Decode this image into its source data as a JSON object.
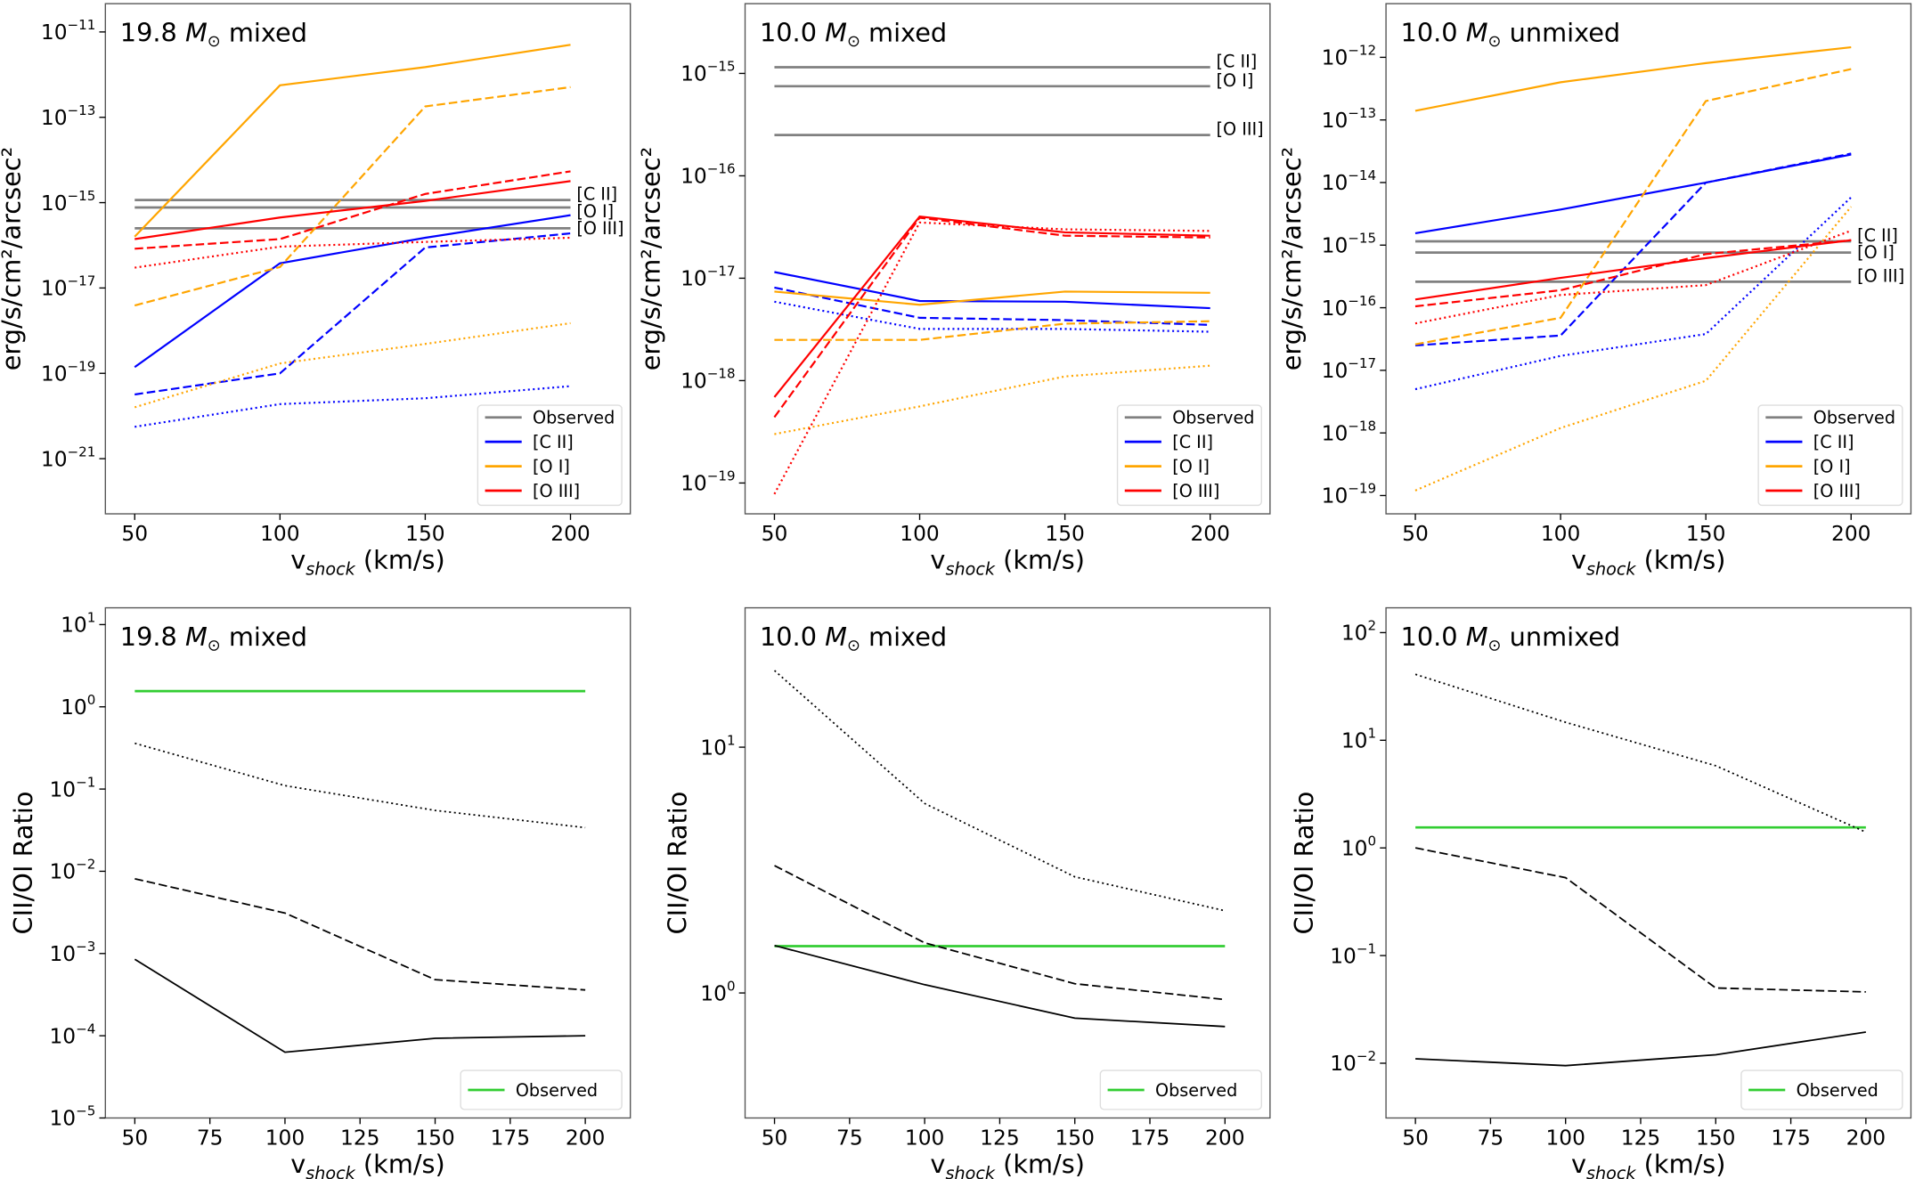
{
  "colors": {
    "observed": "#808080",
    "[C II]": "#0000ff",
    "[O I]": "#ffa500",
    "[O III]": "#ff0000",
    "ratio": "#000000",
    "observed_ratio": "#32cd32"
  },
  "chart_data": [
    {
      "type": "line",
      "panel": "top-left",
      "title_parts": [
        "19.8 ",
        "M",
        "⊙",
        " mixed"
      ],
      "xlabel_parts": [
        "v",
        "shock",
        " (km/s)"
      ],
      "ylabel": "erg/s/cm²/arcsec²",
      "yscale": "log",
      "ylim": [
        5.1e-23,
        4.6e-11
      ],
      "xlim": [
        39.9,
        220.6
      ],
      "x": [
        50,
        100,
        150,
        200
      ],
      "xticks": [
        "50",
        "100",
        "150",
        "200"
      ],
      "yticks": [
        {
          "value": 1e-11,
          "base": "10",
          "exp": "−11"
        },
        {
          "value": 1e-13,
          "base": "10",
          "exp": "−13"
        },
        {
          "value": 1e-15,
          "base": "10",
          "exp": "−15"
        },
        {
          "value": 1e-17,
          "base": "10",
          "exp": "−17"
        },
        {
          "value": 1e-19,
          "base": "10",
          "exp": "−19"
        },
        {
          "value": 1e-21,
          "base": "10",
          "exp": "−21"
        }
      ],
      "observed": [
        {
          "label": "[C II]",
          "value": 1.15e-15
        },
        {
          "label": "[O I]",
          "value": 7.7e-16
        },
        {
          "label": "[O III]",
          "value": 2.5e-16
        }
      ],
      "series": [
        {
          "line": "[C II]",
          "style": "solid",
          "values": [
            1.4e-19,
            3.8e-17,
            1.5e-16,
            5.1e-16
          ]
        },
        {
          "line": "[C II]",
          "style": "dashed",
          "values": [
            3.2e-20,
            1e-19,
            8.9e-17,
            1.9e-16
          ]
        },
        {
          "line": "[C II]",
          "style": "dotted",
          "values": [
            5.6e-21,
            1.9e-20,
            2.6e-20,
            5e-20
          ]
        },
        {
          "line": "[O I]",
          "style": "solid",
          "values": [
            1.6e-16,
            5.6e-13,
            1.5e-12,
            5e-12
          ]
        },
        {
          "line": "[O I]",
          "style": "dashed",
          "values": [
            3.9e-18,
            3.1e-17,
            1.8e-13,
            5.1e-13
          ]
        },
        {
          "line": "[O I]",
          "style": "dotted",
          "values": [
            1.6e-20,
            1.7e-19,
            4.9e-19,
            1.5e-18
          ]
        },
        {
          "line": "[O III]",
          "style": "solid",
          "values": [
            1.4e-16,
            4.5e-16,
            1.1e-15,
            3.2e-15
          ]
        },
        {
          "line": "[O III]",
          "style": "dashed",
          "values": [
            8.3e-17,
            1.4e-16,
            1.6e-15,
            5.4e-15
          ]
        },
        {
          "line": "[O III]",
          "style": "dotted",
          "values": [
            3e-17,
            9.3e-17,
            1.2e-16,
            1.5e-16
          ]
        }
      ],
      "legend": {
        "position": "lower right",
        "entries": [
          "Observed",
          "[C II]",
          "[O I]",
          "[O III]"
        ]
      }
    },
    {
      "type": "line",
      "panel": "top-center",
      "title_parts": [
        "10.0 ",
        "M",
        "⊙",
        " mixed"
      ],
      "xlabel_parts": [
        "v",
        "shock",
        " (km/s)"
      ],
      "ylabel": "erg/s/cm²/arcsec²",
      "yscale": "log",
      "ylim": [
        5e-20,
        4.8e-15
      ],
      "xlim": [
        39.9,
        220.6
      ],
      "x": [
        50,
        100,
        150,
        200
      ],
      "xticks": [
        "50",
        "100",
        "150",
        "200"
      ],
      "yticks": [
        {
          "value": 1e-15,
          "base": "10",
          "exp": "−15"
        },
        {
          "value": 1e-16,
          "base": "10",
          "exp": "−16"
        },
        {
          "value": 1e-17,
          "base": "10",
          "exp": "−17"
        },
        {
          "value": 1e-18,
          "base": "10",
          "exp": "−18"
        },
        {
          "value": 1e-19,
          "base": "10",
          "exp": "−19"
        }
      ],
      "observed": [
        {
          "label": "[C II]",
          "value": 1.15e-15
        },
        {
          "label": "[O I]",
          "value": 7.5e-16
        },
        {
          "label": "[O III]",
          "value": 2.5e-16
        }
      ],
      "series": [
        {
          "line": "[C II]",
          "style": "solid",
          "values": [
            1.15e-17,
            6e-18,
            5.9e-18,
            5.1e-18
          ]
        },
        {
          "line": "[C II]",
          "style": "dashed",
          "values": [
            8.1e-18,
            4.1e-18,
            3.9e-18,
            3.5e-18
          ]
        },
        {
          "line": "[C II]",
          "style": "dotted",
          "values": [
            5.9e-18,
            3.2e-18,
            3.2e-18,
            3e-18
          ]
        },
        {
          "line": "[O I]",
          "style": "solid",
          "values": [
            7.4e-18,
            5.5e-18,
            7.4e-18,
            7.2e-18
          ]
        },
        {
          "line": "[O I]",
          "style": "dashed",
          "values": [
            2.5e-18,
            2.5e-18,
            3.6e-18,
            3.8e-18
          ]
        },
        {
          "line": "[O I]",
          "style": "dotted",
          "values": [
            3e-19,
            5.6e-19,
            1.1e-18,
            1.4e-18
          ]
        },
        {
          "line": "[O III]",
          "style": "solid",
          "values": [
            6.9e-19,
            4e-17,
            2.8e-17,
            2.6e-17
          ]
        },
        {
          "line": "[O III]",
          "style": "dashed",
          "values": [
            4.4e-19,
            3.9e-17,
            2.6e-17,
            2.5e-17
          ]
        },
        {
          "line": "[O III]",
          "style": "dotted",
          "values": [
            7.8e-20,
            3.5e-17,
            3e-17,
            2.9e-17
          ]
        }
      ],
      "legend": {
        "position": "lower right",
        "entries": [
          "Observed",
          "[C II]",
          "[O I]",
          "[O III]"
        ]
      }
    },
    {
      "type": "line",
      "panel": "top-right",
      "title_parts": [
        "10.0 ",
        "M",
        "⊙",
        " unmixed"
      ],
      "xlabel_parts": [
        "v",
        "shock",
        " (km/s)"
      ],
      "ylabel": "erg/s/cm²/arcsec²",
      "yscale": "log",
      "ylim": [
        5.1e-20,
        7.2e-12
      ],
      "xlim": [
        39.9,
        220.6
      ],
      "x": [
        50,
        100,
        150,
        200
      ],
      "xticks": [
        "50",
        "100",
        "150",
        "200"
      ],
      "yticks": [
        {
          "value": 1e-12,
          "base": "10",
          "exp": "−12"
        },
        {
          "value": 1e-13,
          "base": "10",
          "exp": "−13"
        },
        {
          "value": 1e-14,
          "base": "10",
          "exp": "−14"
        },
        {
          "value": 1e-15,
          "base": "10",
          "exp": "−15"
        },
        {
          "value": 1e-16,
          "base": "10",
          "exp": "−16"
        },
        {
          "value": 1e-17,
          "base": "10",
          "exp": "−17"
        },
        {
          "value": 1e-18,
          "base": "10",
          "exp": "−18"
        },
        {
          "value": 1e-19,
          "base": "10",
          "exp": "−19"
        }
      ],
      "observed": [
        {
          "label": "[C II]",
          "value": 1.15e-15
        },
        {
          "label": "[O I]",
          "value": 7.6e-16
        },
        {
          "label": "[O III]",
          "value": 2.6e-16
        }
      ],
      "series": [
        {
          "line": "[C II]",
          "style": "solid",
          "values": [
            1.55e-15,
            3.7e-15,
            1e-14,
            2.8e-14
          ]
        },
        {
          "line": "[C II]",
          "style": "dashed",
          "values": [
            2.5e-17,
            3.6e-17,
            1e-14,
            2.9e-14
          ]
        },
        {
          "line": "[C II]",
          "style": "dotted",
          "values": [
            5e-18,
            1.7e-17,
            3.8e-17,
            5.8e-15
          ]
        },
        {
          "line": "[O I]",
          "style": "solid",
          "values": [
            1.4e-13,
            4e-13,
            8.1e-13,
            1.45e-12
          ]
        },
        {
          "line": "[O I]",
          "style": "dashed",
          "values": [
            2.6e-17,
            6.9e-17,
            2e-13,
            6.5e-13
          ]
        },
        {
          "line": "[O I]",
          "style": "dotted",
          "values": [
            1.2e-19,
            1.2e-18,
            6.8e-18,
            4.1e-15
          ]
        },
        {
          "line": "[O III]",
          "style": "solid",
          "values": [
            1.35e-16,
            3e-16,
            6.2e-16,
            1.2e-15
          ]
        },
        {
          "line": "[O III]",
          "style": "dashed",
          "values": [
            1.05e-16,
            1.9e-16,
            7.2e-16,
            1.2e-15
          ]
        },
        {
          "line": "[O III]",
          "style": "dotted",
          "values": [
            5.6e-17,
            1.6e-16,
            2.3e-16,
            1.7e-15
          ]
        }
      ],
      "legend": {
        "position": "lower right",
        "entries": [
          "Observed",
          "[C II]",
          "[O I]",
          "[O III]"
        ]
      }
    },
    {
      "type": "line",
      "panel": "bottom-left",
      "title_parts": [
        "19.8 ",
        "M",
        "⊙",
        " mixed"
      ],
      "xlabel_parts": [
        "v",
        "shock",
        " (km/s)"
      ],
      "ylabel": "CII/OI Ratio",
      "yscale": "log",
      "ylim": [
        1e-05,
        16
      ],
      "xlim": [
        40.2,
        215
      ],
      "x": [
        50,
        100,
        150,
        200
      ],
      "xticks": [
        "50",
        "75",
        "100",
        "125",
        "150",
        "175",
        "200"
      ],
      "yticks": [
        {
          "value": 10,
          "base": "10",
          "exp": "1"
        },
        {
          "value": 1,
          "base": "10",
          "exp": "0"
        },
        {
          "value": 0.1,
          "base": "10",
          "exp": "−1"
        },
        {
          "value": 0.01,
          "base": "10",
          "exp": "−2"
        },
        {
          "value": 0.001,
          "base": "10",
          "exp": "−3"
        },
        {
          "value": 0.0001,
          "base": "10",
          "exp": "−4"
        },
        {
          "value": 1e-05,
          "base": "10",
          "exp": "−5"
        }
      ],
      "observed_ratio": 1.55,
      "series": [
        {
          "style": "solid",
          "values": [
            0.00085,
            6.3e-05,
            9.3e-05,
            0.0001
          ]
        },
        {
          "style": "dashed",
          "values": [
            0.0081,
            0.0031,
            0.00048,
            0.00036
          ]
        },
        {
          "style": "dotted",
          "values": [
            0.36,
            0.11,
            0.055,
            0.034
          ]
        }
      ],
      "legend": {
        "position": "lower right",
        "entries": [
          "Observed"
        ]
      }
    },
    {
      "type": "line",
      "panel": "bottom-center",
      "title_parts": [
        "10.0 ",
        "M",
        "⊙",
        " mixed"
      ],
      "xlabel_parts": [
        "v",
        "shock",
        " (km/s)"
      ],
      "ylabel": "CII/OI Ratio",
      "yscale": "log",
      "ylim": [
        0.31,
        36.9
      ],
      "xlim": [
        40.2,
        215
      ],
      "x": [
        50,
        100,
        150,
        200
      ],
      "xticks": [
        "50",
        "75",
        "100",
        "125",
        "150",
        "175",
        "200"
      ],
      "yticks": [
        {
          "value": 10,
          "base": "10",
          "exp": "1"
        },
        {
          "value": 1,
          "base": "10",
          "exp": "0"
        }
      ],
      "observed_ratio": 1.55,
      "series": [
        {
          "style": "solid",
          "values": [
            1.56,
            1.08,
            0.79,
            0.73
          ]
        },
        {
          "style": "dashed",
          "values": [
            3.3,
            1.6,
            1.09,
            0.94
          ]
        },
        {
          "style": "dotted",
          "values": [
            20.5,
            5.9,
            2.97,
            2.16
          ]
        }
      ],
      "legend": {
        "position": "lower right",
        "entries": [
          "Observed"
        ]
      }
    },
    {
      "type": "line",
      "panel": "bottom-right",
      "title_parts": [
        "10.0 ",
        "M",
        "⊙",
        " unmixed"
      ],
      "xlabel_parts": [
        "v",
        "shock",
        " (km/s)"
      ],
      "ylabel": "CII/OI Ratio",
      "yscale": "log",
      "ylim": [
        0.0031,
        170
      ],
      "xlim": [
        40.2,
        215
      ],
      "x": [
        50,
        100,
        150,
        200
      ],
      "xticks": [
        "50",
        "75",
        "100",
        "125",
        "150",
        "175",
        "200"
      ],
      "yticks": [
        {
          "value": 100,
          "base": "10",
          "exp": "2"
        },
        {
          "value": 10,
          "base": "10",
          "exp": "1"
        },
        {
          "value": 1,
          "base": "10",
          "exp": "0"
        },
        {
          "value": 0.1,
          "base": "10",
          "exp": "−1"
        },
        {
          "value": 0.01,
          "base": "10",
          "exp": "−2"
        }
      ],
      "observed_ratio": 1.55,
      "series": [
        {
          "style": "solid",
          "values": [
            0.011,
            0.0095,
            0.012,
            0.0195
          ]
        },
        {
          "style": "dashed",
          "values": [
            1.0,
            0.53,
            0.05,
            0.046
          ]
        },
        {
          "style": "dotted",
          "values": [
            41,
            14.7,
            5.8,
            1.4
          ]
        }
      ],
      "legend": {
        "position": "lower right",
        "entries": [
          "Observed"
        ]
      }
    }
  ]
}
